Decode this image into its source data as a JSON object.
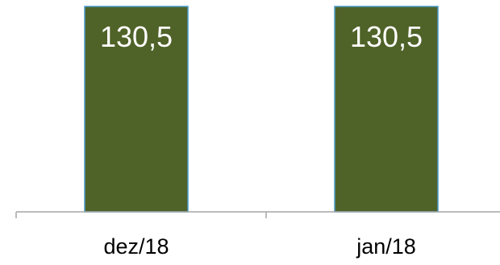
{
  "chart_data": {
    "type": "bar",
    "categories": [
      "dez/18",
      "jan/18"
    ],
    "values": [
      130.5,
      130.5
    ],
    "data_labels": [
      "130,5",
      "130,5"
    ],
    "title": "",
    "xlabel": "",
    "ylabel": "",
    "grid": false,
    "legend": "none",
    "colors": {
      "bar_fill": "#4f6228",
      "bar_stroke": "#4a9bc9",
      "axis": "#a6a6a6",
      "label_text": "#ffffff",
      "tick_text": "#000000"
    }
  }
}
